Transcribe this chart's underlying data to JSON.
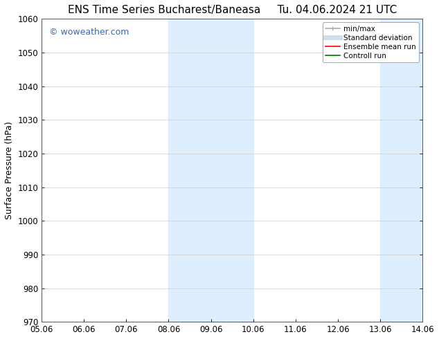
{
  "title_left": "ENS Time Series Bucharest/Baneasa",
  "title_right": "Tu. 04.06.2024 21 UTC",
  "ylabel": "Surface Pressure (hPa)",
  "ylim": [
    970,
    1060
  ],
  "yticks": [
    970,
    980,
    990,
    1000,
    1010,
    1020,
    1030,
    1040,
    1050,
    1060
  ],
  "xtick_labels": [
    "05.06",
    "06.06",
    "07.06",
    "08.06",
    "09.06",
    "10.06",
    "11.06",
    "12.06",
    "13.06",
    "14.06"
  ],
  "xtick_positions": [
    0,
    1,
    2,
    3,
    4,
    5,
    6,
    7,
    8,
    9
  ],
  "shaded_bands": [
    {
      "x_start": 3,
      "x_end": 5,
      "color": "#ddeeff"
    },
    {
      "x_start": 8,
      "x_end": 9,
      "color": "#ddeeff"
    }
  ],
  "watermark_text": "© woweather.com",
  "watermark_color": "#3366cc",
  "background_color": "#ffffff",
  "legend_items": [
    {
      "label": "min/max",
      "color": "#aaaaaa",
      "linestyle": "-",
      "linewidth": 1.2
    },
    {
      "label": "Standard deviation",
      "color": "#cce0f0",
      "linestyle": "-",
      "linewidth": 5
    },
    {
      "label": "Ensemble mean run",
      "color": "#ff0000",
      "linestyle": "-",
      "linewidth": 1.2
    },
    {
      "label": "Controll run",
      "color": "#007700",
      "linestyle": "-",
      "linewidth": 1.2
    }
  ],
  "grid_color": "#cccccc",
  "grid_linestyle": "-",
  "grid_linewidth": 0.5,
  "title_fontsize": 11,
  "tick_fontsize": 8.5,
  "label_fontsize": 9,
  "legend_fontsize": 7.5,
  "watermark_fontsize": 9
}
